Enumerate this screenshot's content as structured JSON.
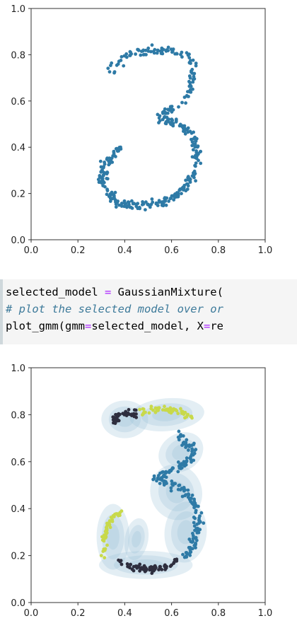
{
  "chart_data": [
    {
      "type": "scatter",
      "title": "",
      "xlabel": "",
      "ylabel": "",
      "xlim": [
        0.0,
        1.0
      ],
      "ylim": [
        0.0,
        1.0
      ],
      "x_ticks": [
        "0.0",
        "0.2",
        "0.4",
        "0.6",
        "0.8",
        "1.0"
      ],
      "y_ticks": [
        "0.0",
        "0.2",
        "0.4",
        "0.6",
        "0.8",
        "1.0"
      ],
      "grid": false,
      "point_color": "#2e7aa6",
      "shape": "digit 3",
      "series": [
        {
          "strokes": [
            {
              "x": [
                0.34,
                0.4,
                0.48,
                0.56,
                0.62,
                0.66,
                0.69,
                0.69,
                0.67,
                0.63,
                0.58,
                0.53
              ],
              "y": [
                0.73,
                0.8,
                0.82,
                0.82,
                0.81,
                0.79,
                0.75,
                0.68,
                0.62,
                0.58,
                0.55,
                0.53
              ],
              "n": 130,
              "spread": 0.025
            },
            {
              "x": [
                0.55,
                0.6,
                0.66,
                0.7,
                0.71,
                0.7,
                0.67,
                0.62,
                0.55,
                0.48,
                0.41,
                0.36,
                0.32,
                0.3,
                0.31,
                0.36,
                0.4
              ],
              "y": [
                0.53,
                0.51,
                0.48,
                0.43,
                0.37,
                0.3,
                0.24,
                0.19,
                0.16,
                0.14,
                0.15,
                0.17,
                0.21,
                0.26,
                0.32,
                0.38,
                0.4
              ],
              "n": 270,
              "spread": 0.028
            }
          ]
        }
      ]
    },
    {
      "type": "scatter",
      "title": "",
      "xlabel": "",
      "ylabel": "",
      "xlim": [
        0.0,
        1.0
      ],
      "ylim": [
        0.0,
        1.0
      ],
      "x_ticks": [
        "0.0",
        "0.2",
        "0.4",
        "0.6",
        "0.8",
        "1.0"
      ],
      "y_ticks": [
        "0.0",
        "0.2",
        "0.4",
        "0.6",
        "0.8",
        "1.0"
      ],
      "grid": false,
      "ellipse_color": "#9cc3d9",
      "series": [
        {
          "color": "#2e2e3e",
          "strokes": [
            {
              "x": [
                0.35,
                0.38,
                0.42,
                0.45
              ],
              "y": [
                0.76,
                0.8,
                0.81,
                0.8
              ],
              "n": 45,
              "spread": 0.025
            }
          ]
        },
        {
          "color": "#c8d94a",
          "strokes": [
            {
              "x": [
                0.47,
                0.53,
                0.59,
                0.65,
                0.69
              ],
              "y": [
                0.81,
                0.82,
                0.82,
                0.81,
                0.78
              ],
              "n": 55,
              "spread": 0.022
            }
          ]
        },
        {
          "color": "#2e7aa6",
          "strokes": [
            {
              "x": [
                0.62,
                0.66,
                0.69,
                0.68,
                0.64,
                0.58,
                0.53,
                0.58,
                0.64,
                0.69,
                0.71,
                0.71,
                0.7,
                0.68,
                0.66
              ],
              "y": [
                0.72,
                0.69,
                0.65,
                0.61,
                0.58,
                0.55,
                0.53,
                0.51,
                0.48,
                0.44,
                0.39,
                0.34,
                0.28,
                0.23,
                0.19
              ],
              "n": 190,
              "spread": 0.03
            }
          ]
        },
        {
          "color": "#2e2e3e",
          "strokes": [
            {
              "x": [
                0.38,
                0.44,
                0.5,
                0.56,
                0.62
              ],
              "y": [
                0.17,
                0.15,
                0.14,
                0.15,
                0.17
              ],
              "n": 70,
              "spread": 0.022
            }
          ]
        },
        {
          "color": "#c8d94a",
          "strokes": [
            {
              "x": [
                0.32,
                0.31,
                0.32,
                0.35,
                0.38
              ],
              "y": [
                0.19,
                0.25,
                0.31,
                0.36,
                0.39
              ],
              "n": 45,
              "spread": 0.02
            }
          ]
        }
      ],
      "ellipses": [
        {
          "cx": 0.4,
          "cy": 0.78,
          "rx": 0.1,
          "ry": 0.08,
          "angle": 0
        },
        {
          "cx": 0.58,
          "cy": 0.8,
          "rx": 0.16,
          "ry": 0.07,
          "angle": -5
        },
        {
          "cx": 0.64,
          "cy": 0.64,
          "rx": 0.1,
          "ry": 0.08,
          "angle": -30
        },
        {
          "cx": 0.62,
          "cy": 0.47,
          "rx": 0.11,
          "ry": 0.12,
          "angle": -20
        },
        {
          "cx": 0.66,
          "cy": 0.3,
          "rx": 0.09,
          "ry": 0.13,
          "angle": 5
        },
        {
          "cx": 0.49,
          "cy": 0.16,
          "rx": 0.2,
          "ry": 0.06,
          "angle": 0
        },
        {
          "cx": 0.35,
          "cy": 0.28,
          "rx": 0.07,
          "ry": 0.14,
          "angle": 0
        },
        {
          "cx": 0.45,
          "cy": 0.27,
          "rx": 0.05,
          "ry": 0.09,
          "angle": 10
        }
      ]
    }
  ],
  "code": {
    "line1_a": "selected_model ",
    "line1_op": "=",
    "line1_b": " GaussianMixture(",
    "line2": "# plot the selected model over or",
    "line3_a": "plot_gmm(gmm",
    "line3_op1": "=",
    "line3_b": "selected_model, X",
    "line3_op2": "=",
    "line3_c": "re"
  }
}
